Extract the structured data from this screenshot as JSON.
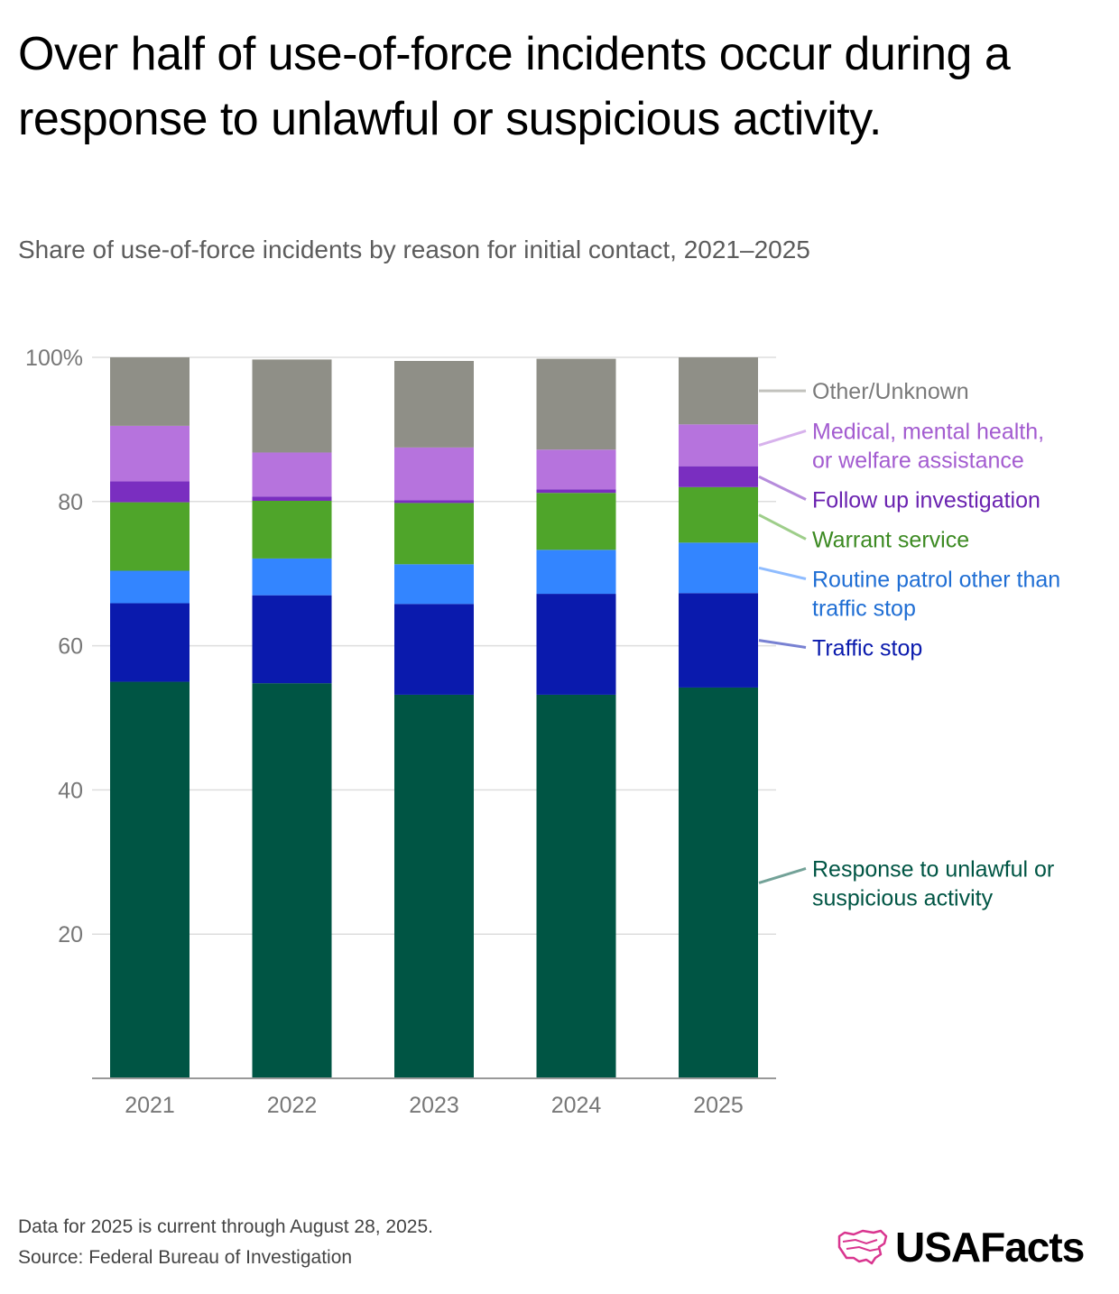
{
  "title": "Over half of use-of-force incidents occur during a response to unlawful or suspicious activity.",
  "subtitle": "Share of use-of-force incidents by reason for initial contact, 2021–2025",
  "footnotes": {
    "note": "Data for 2025 is current through August 28, 2025.",
    "source": "Source: Federal Bureau of Investigation"
  },
  "logo": {
    "text": "USAFacts",
    "icon": "usafacts-map-logo-icon"
  },
  "colors": {
    "grid": "#dddddd",
    "axis": "#999999",
    "tick_text": "#777777"
  },
  "chart_data": {
    "type": "bar",
    "stacked": true,
    "categories": [
      "2021",
      "2022",
      "2023",
      "2024",
      "2025"
    ],
    "ylim": [
      0,
      100
    ],
    "y_ticks": [
      20,
      40,
      60,
      80,
      100
    ],
    "y_tick_labels": [
      "20",
      "40",
      "60",
      "80",
      "100%"
    ],
    "grid": true,
    "legend_placement": "right",
    "series": [
      {
        "name": "Response to unlawful or suspicious activity",
        "label_lines": [
          "Response to unlawful or",
          "suspicious activity"
        ],
        "color": "#005544",
        "label_color": "#005544",
        "values": [
          55.0,
          54.8,
          53.2,
          53.2,
          54.2
        ]
      },
      {
        "name": "Traffic stop",
        "label_lines": [
          "Traffic stop"
        ],
        "color": "#0a1aad",
        "label_color": "#0a1aad",
        "values": [
          10.9,
          12.2,
          12.6,
          14.0,
          13.1
        ]
      },
      {
        "name": "Routine patrol other than traffic stop",
        "label_lines": [
          "Routine patrol other than",
          "traffic stop"
        ],
        "color": "#3385ff",
        "label_color": "#1f6ed4",
        "values": [
          4.5,
          5.1,
          5.5,
          6.1,
          7.0
        ]
      },
      {
        "name": "Warrant service",
        "label_lines": [
          "Warrant service"
        ],
        "color": "#4fa52a",
        "label_color": "#3c8a22",
        "values": [
          9.5,
          8.0,
          8.5,
          7.9,
          7.7
        ]
      },
      {
        "name": "Follow up investigation",
        "label_lines": [
          "Follow up investigation"
        ],
        "color": "#7a2ec0",
        "label_color": "#6a22b0",
        "values": [
          2.9,
          0.6,
          0.4,
          0.5,
          2.9
        ]
      },
      {
        "name": "Medical, mental health, or welfare assistance",
        "label_lines": [
          "Medical, mental health,",
          "or welfare assistance"
        ],
        "color": "#b673dd",
        "label_color": "#a35cd0",
        "values": [
          7.7,
          6.1,
          7.3,
          5.5,
          5.8
        ]
      },
      {
        "name": "Other/Unknown",
        "label_lines": [
          "Other/Unknown"
        ],
        "color": "#8f8f87",
        "label_color": "#7a7a7a",
        "values": [
          9.5,
          12.9,
          12.0,
          12.6,
          9.3
        ]
      }
    ]
  }
}
